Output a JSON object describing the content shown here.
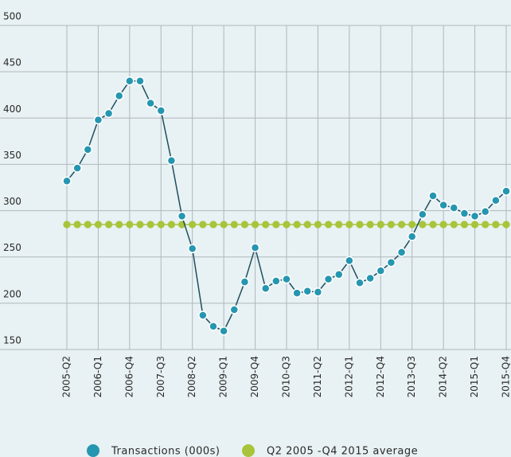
{
  "chart_data": {
    "type": "line",
    "categories": [
      "2005-Q2",
      null,
      null,
      "2006-Q1",
      null,
      null,
      "2006-Q4",
      null,
      null,
      "2007-Q3",
      null,
      null,
      "2008-Q2",
      null,
      null,
      "2009-Q1",
      null,
      null,
      "2009-Q4",
      null,
      null,
      "2010-Q3",
      null,
      null,
      "2011-Q2",
      null,
      null,
      "2012-Q1",
      null,
      null,
      "2012-Q4",
      null,
      null,
      "2013-Q3",
      null,
      null,
      "2014-Q2",
      null,
      null,
      "2015-Q1",
      null,
      null,
      "2015-Q4"
    ],
    "series": [
      {
        "name": "Transactions (000s)",
        "color": "#2596b0",
        "line_color": "#1d4f60",
        "values": [
          332,
          346,
          366,
          398,
          405,
          424,
          440,
          440,
          416,
          408,
          354,
          294,
          259,
          187,
          175,
          170,
          193,
          223,
          260,
          216,
          224,
          226,
          211,
          213,
          212,
          226,
          231,
          246,
          222,
          227,
          235,
          244,
          255,
          272,
          296,
          316,
          306,
          303,
          297,
          294,
          299,
          311,
          321
        ]
      },
      {
        "name": "Q2 2005 -Q4 2015 average",
        "color": "#a8c43a",
        "line_color": "#a8c43a",
        "values": [
          285,
          285,
          285,
          285,
          285,
          285,
          285,
          285,
          285,
          285,
          285,
          285,
          285,
          285,
          285,
          285,
          285,
          285,
          285,
          285,
          285,
          285,
          285,
          285,
          285,
          285,
          285,
          285,
          285,
          285,
          285,
          285,
          285,
          285,
          285,
          285,
          285,
          285,
          285,
          285,
          285,
          285,
          285
        ]
      }
    ],
    "ylim": [
      150,
      500
    ],
    "yticks": [
      150,
      200,
      250,
      300,
      350,
      400,
      450,
      500
    ],
    "grid": true
  }
}
